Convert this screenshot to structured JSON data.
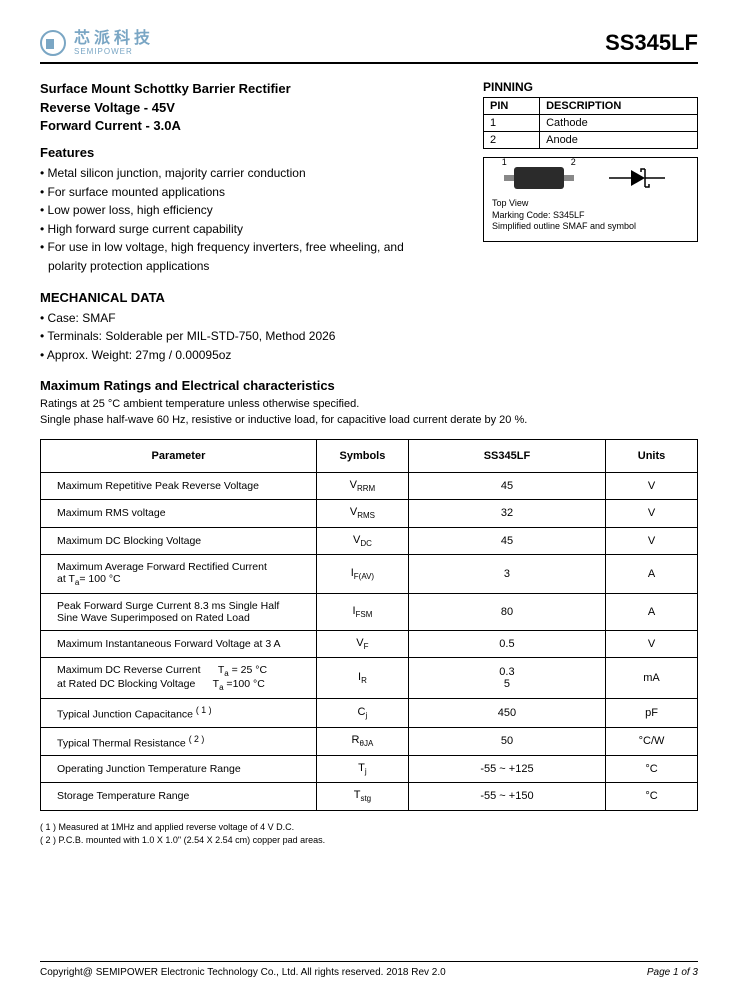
{
  "header": {
    "logo_cn": "芯派科技",
    "logo_en": "SEMIPOWER",
    "part_number": "SS345LF"
  },
  "title": {
    "line1": "Surface Mount Schottky Barrier Rectifier",
    "line2": "Reverse Voltage - 45V",
    "line3": "Forward Current - 3.0A"
  },
  "pinning": {
    "heading": "PINNING",
    "col1": "PIN",
    "col2": "DESCRIPTION",
    "rows": [
      {
        "pin": "1",
        "desc": "Cathode"
      },
      {
        "pin": "2",
        "desc": "Anode"
      }
    ]
  },
  "diagram": {
    "pin1": "1",
    "pin2": "2",
    "top_view": "Top View",
    "marking": "Marking Code:  S345LF",
    "outline": "Simplified outline SMAF and symbol"
  },
  "features": {
    "heading": "Features",
    "items": [
      "Metal silicon junction, majority carrier conduction",
      "For surface mounted applications",
      "Low power loss, high efficiency",
      "High forward surge current capability",
      "For use in low voltage, high frequency inverters, free wheeling, and polarity protection applications"
    ]
  },
  "mechanical": {
    "heading": "MECHANICAL DATA",
    "items": [
      "Case: SMAF",
      "Terminals: Solderable per MIL-STD-750, Method 2026",
      "Approx. Weight: 27mg  /  0.00095oz"
    ]
  },
  "ratings": {
    "heading": "Maximum Ratings and Electrical characteristics",
    "note1": "Ratings at 25 °C ambient temperature unless otherwise specified.",
    "note2": "Single phase half-wave 60 Hz, resistive or inductive load, for capacitive load current derate by 20 %."
  },
  "table": {
    "headers": {
      "param": "Parameter",
      "sym": "Symbols",
      "val": "SS345LF",
      "unit": "Units"
    },
    "rows": [
      {
        "param": "Maximum Repetitive Peak Reverse Voltage",
        "sym": "V<sub>RRM</sub>",
        "val": "45",
        "unit": "V"
      },
      {
        "param": "Maximum RMS voltage",
        "sym": "V<sub>RMS</sub>",
        "val": "32",
        "unit": "V"
      },
      {
        "param": "Maximum DC Blocking Voltage",
        "sym": "V<sub>DC</sub>",
        "val": "45",
        "unit": "V"
      },
      {
        "param": "Maximum Average Forward Rectified Current<br>at T<sub>a</sub>= 100 °C",
        "sym": "I<sub>F(AV)</sub>",
        "val": "3",
        "unit": "A"
      },
      {
        "param": "Peak Forward Surge Current 8.3 ms Single Half<br>Sine Wave Superimposed on Rated Load",
        "sym": "I<sub>FSM</sub>",
        "val": "80",
        "unit": "A"
      },
      {
        "param": "Maximum Instantaneous Forward Voltage at 3 A",
        "sym": "V<sub>F</sub>",
        "val": "0.5",
        "unit": "V"
      },
      {
        "param": "Maximum DC Reverse Current &nbsp;&nbsp;&nbsp;&nbsp; T<sub>a</sub> = 25 °C<br>at Rated DC Blocking Voltage &nbsp;&nbsp;&nbsp;&nbsp; T<sub>a</sub> =100 °C",
        "sym": "I<sub>R</sub>",
        "val": "0.3<br>5",
        "unit": "mA"
      },
      {
        "param": "Typical Junction Capacitance <sup>( 1 )</sup>",
        "sym": "C<sub>j</sub>",
        "val": "450",
        "unit": "pF"
      },
      {
        "param": "Typical Thermal Resistance <sup>( 2 )</sup>",
        "sym": "R<sub>θJA</sub>",
        "val": "50",
        "unit": "°C/W"
      },
      {
        "param": "Operating Junction Temperature Range",
        "sym": "T<sub>j</sub>",
        "val": "-55 ~ +125",
        "unit": "°C"
      },
      {
        "param": "Storage Temperature Range",
        "sym": "T<sub>stg</sub>",
        "val": "-55 ~ +150",
        "unit": "°C"
      }
    ]
  },
  "footnotes": {
    "n1": "( 1 ) Measured at 1MHz and applied reverse voltage of 4 V D.C.",
    "n2": "( 2 ) P.C.B. mounted with 1.0 X 1.0\" (2.54 X 2.54 cm) copper pad areas."
  },
  "footer": {
    "copyright": "Copyright@ SEMIPOWER Electronic Technology Co., Ltd.  All rights reserved.  2018  Rev  2.0",
    "page": "Page 1 of 3"
  }
}
